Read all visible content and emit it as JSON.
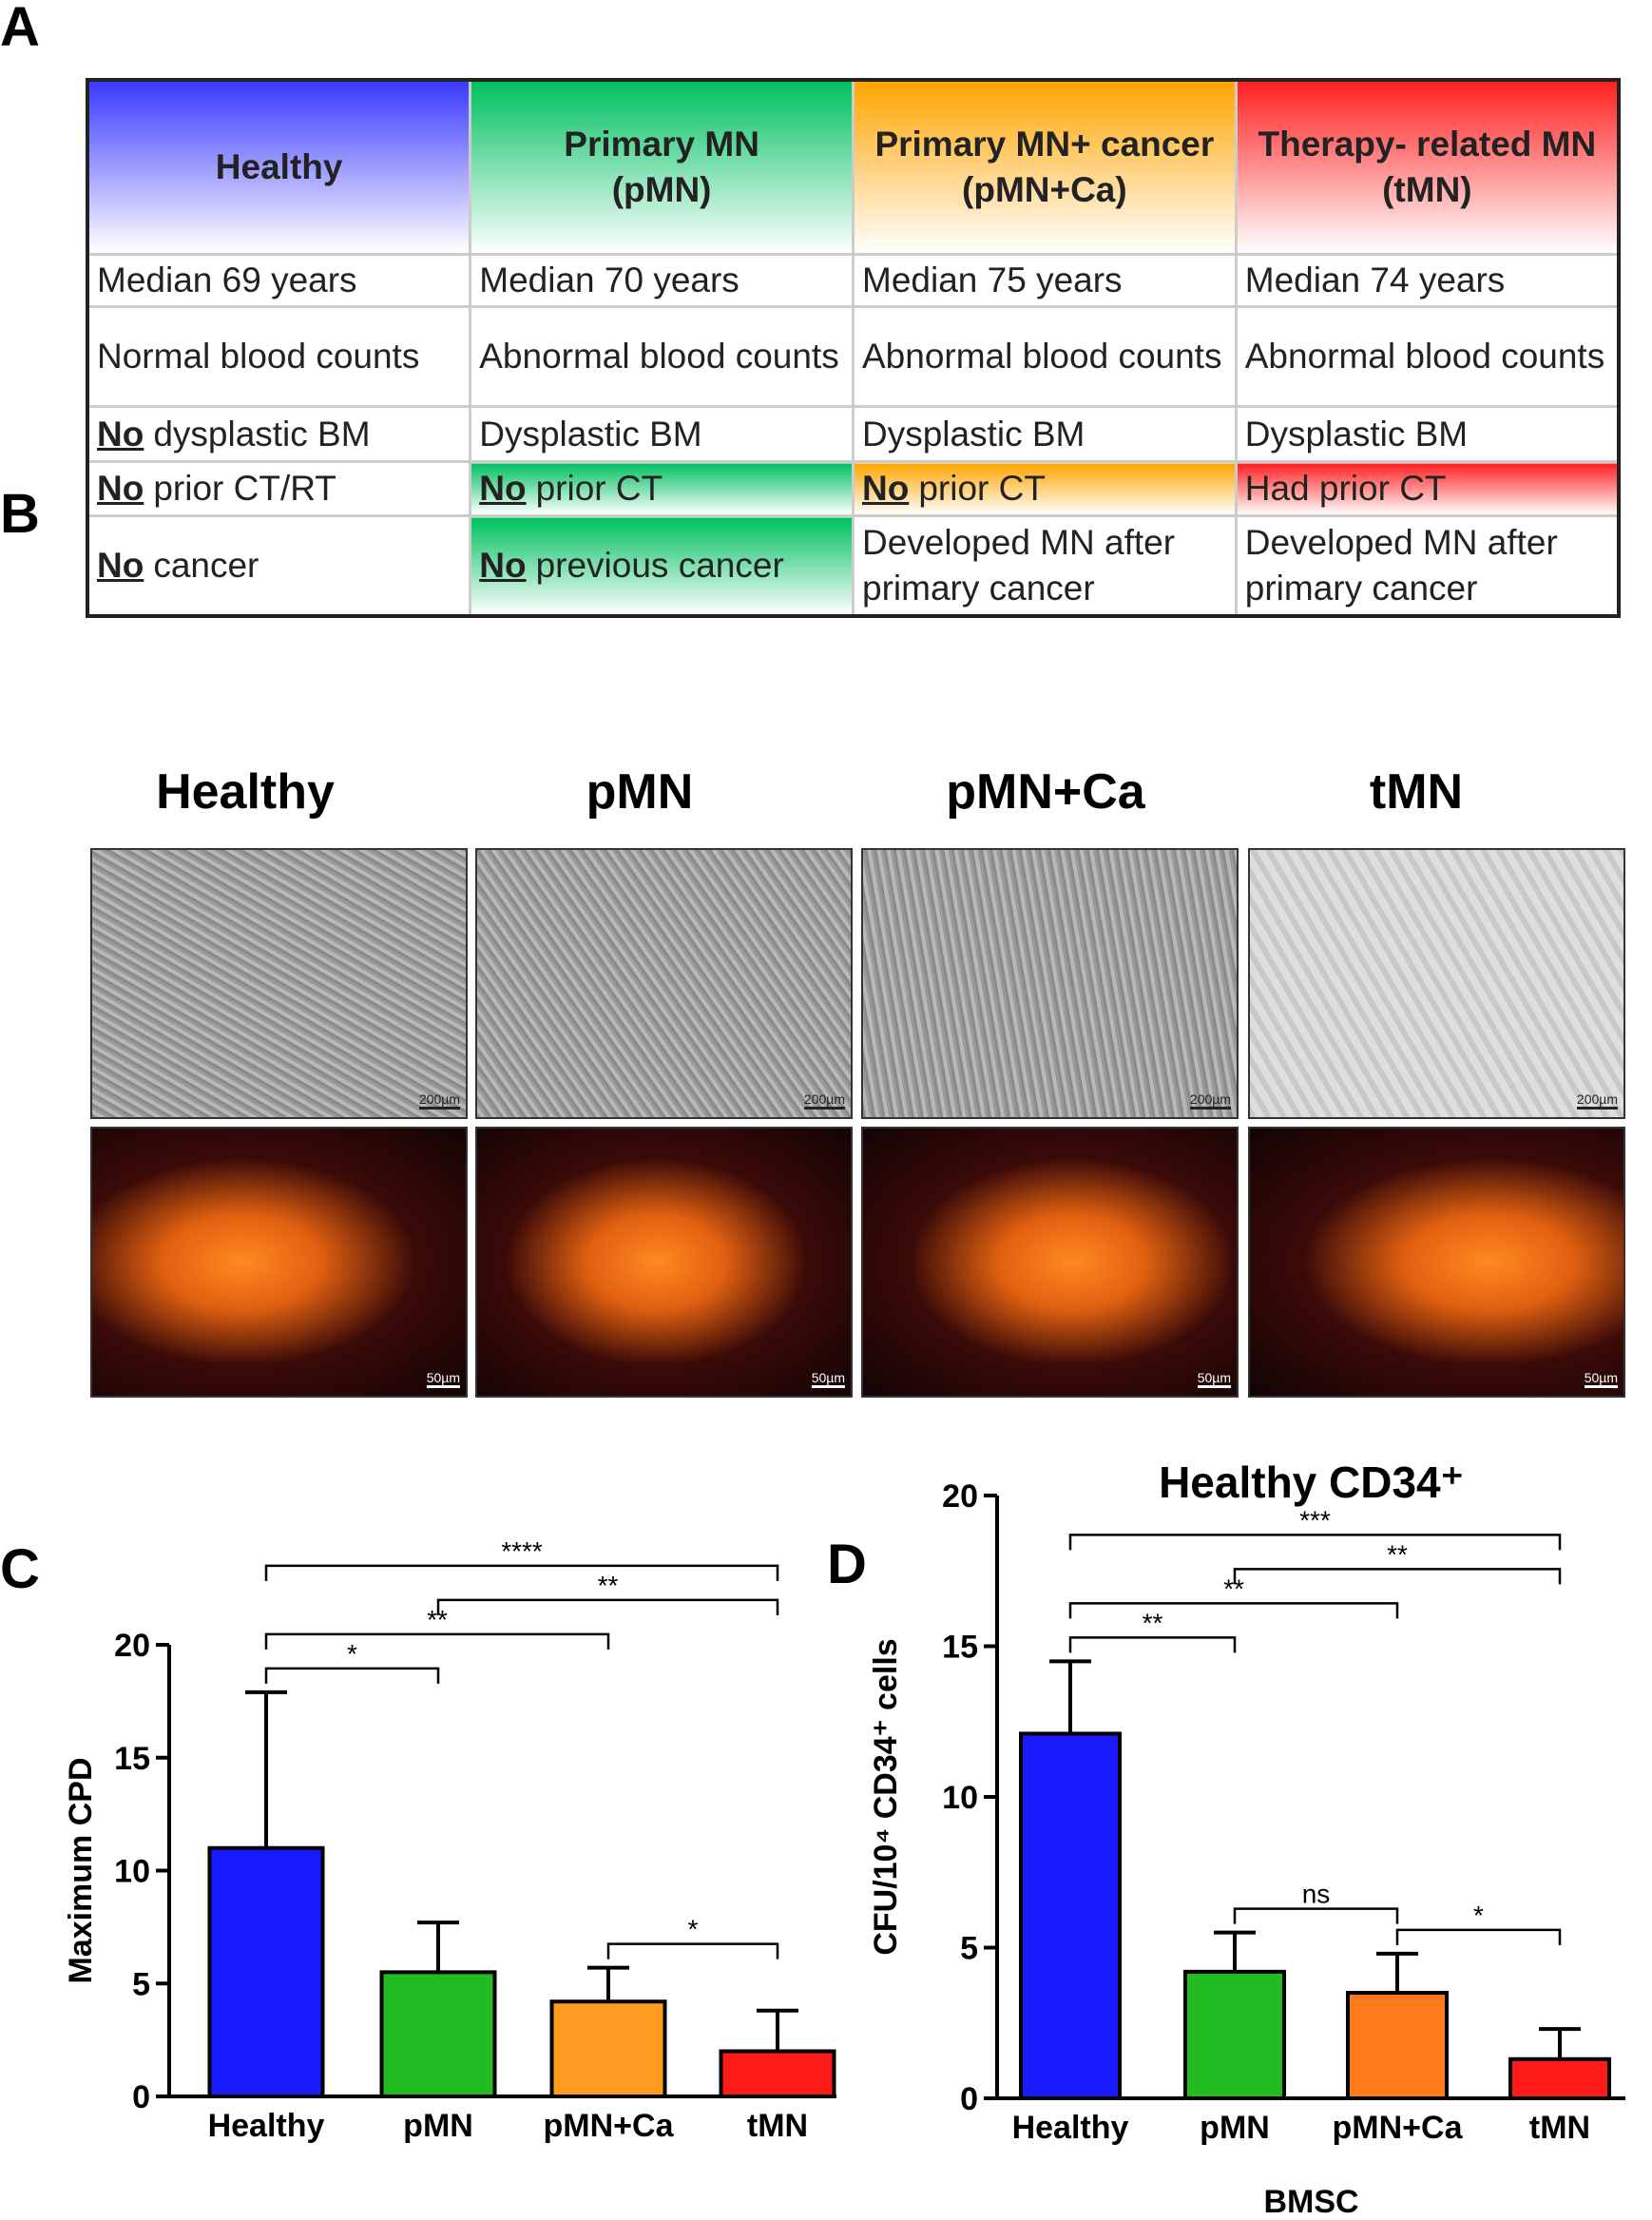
{
  "panel_labels": [
    "A",
    "B",
    "C",
    "D"
  ],
  "table": {
    "headers": [
      {
        "lines": [
          "Healthy"
        ],
        "color": "#3a3aff"
      },
      {
        "lines": [
          "Primary MN",
          "(pMN)"
        ],
        "color": "#00c060"
      },
      {
        "lines": [
          "Primary MN+ cancer",
          "(pMN+Ca)"
        ],
        "color": "#ffa500"
      },
      {
        "lines": [
          "Therapy- related MN",
          "(tMN)"
        ],
        "color": "#ff2020"
      }
    ],
    "rows": [
      {
        "cells": [
          "Median 69 years",
          "Median 70 years",
          "Median 75 years",
          "Median 74 years"
        ],
        "highlight": [
          false,
          false,
          false,
          false
        ]
      },
      {
        "cells": [
          "Normal blood counts",
          "Abnormal blood counts",
          "Abnormal blood counts",
          "Abnormal blood counts"
        ],
        "highlight": [
          false,
          false,
          false,
          false
        ]
      },
      {
        "cells": [
          {
            "em": "No",
            "text": "dysplastic BM"
          },
          "Dysplastic BM",
          "Dysplastic BM",
          "Dysplastic BM"
        ],
        "highlight": [
          false,
          false,
          false,
          false
        ]
      },
      {
        "cells": [
          {
            "em": "No",
            "text": "prior CT/RT"
          },
          {
            "em": "No",
            "text": "prior CT"
          },
          {
            "em": "No",
            "text": "prior CT"
          },
          "Had prior CT"
        ],
        "highlight": [
          false,
          true,
          true,
          true
        ]
      },
      {
        "cells": [
          {
            "em": "No",
            "text": "cancer"
          },
          {
            "em": "No",
            "text": "previous cancer"
          },
          "Developed MN after primary cancer",
          "Developed MN after primary cancer"
        ],
        "highlight": [
          false,
          true,
          false,
          false
        ]
      }
    ]
  },
  "micrographs": {
    "columns": [
      "Healthy",
      "pMN",
      "pMN+Ca",
      "tMN"
    ],
    "scale_bars": [
      "200µm",
      "50µm"
    ]
  },
  "chart_data": [
    {
      "type": "bar",
      "ylabel": "Maximum CPD",
      "categories": [
        "Healthy",
        "pMN",
        "pMN+Ca",
        "tMN"
      ],
      "values": [
        11,
        5.5,
        4.2,
        2.0
      ],
      "errors": [
        6.9,
        2.2,
        1.5,
        1.8
      ],
      "colors": [
        "#1a1aff",
        "#22bb22",
        "#ff9a20",
        "#ff1a1a"
      ],
      "ylim": [
        0,
        20
      ],
      "yticks": [
        0,
        5,
        10,
        15,
        20
      ],
      "comparisons": [
        {
          "from": 0,
          "to": 1,
          "label": "*"
        },
        {
          "from": 0,
          "to": 2,
          "label": "**"
        },
        {
          "from": 0,
          "to": 3,
          "label": "****"
        },
        {
          "from": 1,
          "to": 3,
          "label": "**"
        },
        {
          "from": 2,
          "to": 3,
          "label": "*"
        }
      ]
    },
    {
      "type": "bar",
      "title": "Healthy CD34⁺",
      "ylabel": "CFU/10⁴ CD34⁺ cells",
      "xlabel": "BMSC",
      "categories": [
        "Healthy",
        "pMN",
        "pMN+Ca",
        "tMN"
      ],
      "values": [
        12.1,
        4.2,
        3.5,
        1.3
      ],
      "errors": [
        2.4,
        1.3,
        1.3,
        1.0
      ],
      "colors": [
        "#1a1aff",
        "#22bb22",
        "#ff7a1a",
        "#ff1a1a"
      ],
      "ylim": [
        0,
        20
      ],
      "yticks": [
        0,
        5,
        10,
        15,
        20
      ],
      "comparisons": [
        {
          "from": 0,
          "to": 1,
          "label": "**"
        },
        {
          "from": 0,
          "to": 2,
          "label": "**"
        },
        {
          "from": 0,
          "to": 3,
          "label": "***"
        },
        {
          "from": 1,
          "to": 3,
          "label": "**"
        },
        {
          "from": 1,
          "to": 2,
          "label": "ns"
        },
        {
          "from": 2,
          "to": 3,
          "label": "*"
        }
      ]
    }
  ]
}
